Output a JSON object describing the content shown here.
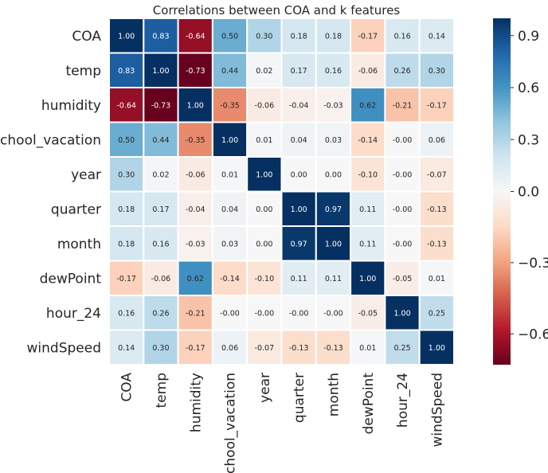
{
  "chart_data": {
    "type": "heatmap",
    "title": "Correlations between COA and k features",
    "labels": [
      "COA",
      "temp",
      "humidity",
      "school_vacation",
      "year",
      "quarter",
      "month",
      "dewPoint",
      "hour_24",
      "windSpeed"
    ],
    "matrix": [
      [
        1.0,
        0.83,
        -0.64,
        0.5,
        0.3,
        0.18,
        0.18,
        -0.17,
        0.16,
        0.14
      ],
      [
        0.83,
        1.0,
        -0.73,
        0.44,
        0.02,
        0.17,
        0.16,
        -0.06,
        0.26,
        0.3
      ],
      [
        -0.64,
        -0.73,
        1.0,
        -0.35,
        -0.06,
        -0.04,
        -0.03,
        0.62,
        -0.21,
        -0.17
      ],
      [
        0.5,
        0.44,
        -0.35,
        1.0,
        0.01,
        0.04,
        0.03,
        -0.14,
        -0.0,
        0.06
      ],
      [
        0.3,
        0.02,
        -0.06,
        0.01,
        1.0,
        0.0,
        0.0,
        -0.1,
        -0.0,
        -0.07
      ],
      [
        0.18,
        0.17,
        -0.04,
        0.04,
        0.0,
        1.0,
        0.97,
        0.11,
        -0.0,
        -0.13
      ],
      [
        0.18,
        0.16,
        -0.03,
        0.03,
        0.0,
        0.97,
        1.0,
        0.11,
        -0.0,
        -0.13
      ],
      [
        -0.17,
        -0.06,
        0.62,
        -0.14,
        -0.1,
        0.11,
        0.11,
        1.0,
        -0.05,
        0.01
      ],
      [
        0.16,
        0.26,
        -0.21,
        -0.0,
        -0.0,
        -0.0,
        -0.0,
        -0.05,
        1.0,
        0.25
      ],
      [
        0.14,
        0.3,
        -0.17,
        0.06,
        -0.07,
        -0.13,
        -0.13,
        0.01,
        0.25,
        1.0
      ]
    ],
    "value_range": [
      -0.73,
      1.0
    ],
    "colormap": "RdBu",
    "colorbar_ticks": [
      0.9,
      0.6,
      0.3,
      0.0,
      -0.3,
      -0.6
    ],
    "colorbar_tick_labels": [
      "0.9",
      "0.6",
      "0.3",
      "0.0",
      "−0.3",
      "−0.6"
    ],
    "value_format": "2 decimals",
    "grid": false,
    "legend": "colorbar-right"
  }
}
